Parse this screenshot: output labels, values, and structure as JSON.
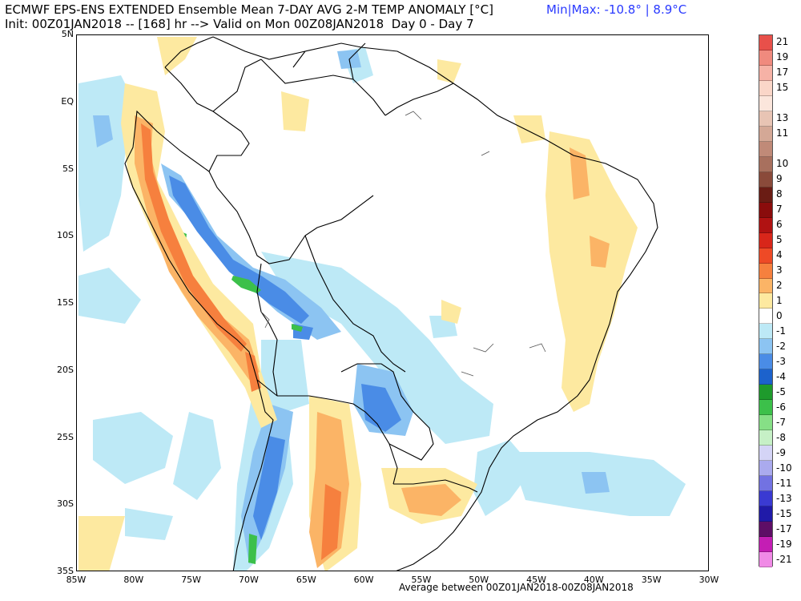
{
  "header": {
    "title_line1": "ECMWF EPS-ENS EXTENDED Ensemble Mean 7-DAY AVG 2-M TEMP ANOMALY [°C]",
    "title_line2": "Init: 00Z01JAN2018 -- [168] hr --> Valid on Mon 00Z08JAN2018  Day 0 - Day 7",
    "minmax": "Min|Max: -10.8° | 8.9°C"
  },
  "footer": {
    "text": "Average between 00Z01JAN2018-00Z08JAN2018"
  },
  "axes": {
    "lon_range": [
      -85,
      -30
    ],
    "lat_range": [
      -35,
      5
    ],
    "lat_ticks": [
      {
        "lat": 5,
        "label": "5N"
      },
      {
        "lat": 0,
        "label": "EQ"
      },
      {
        "lat": -5,
        "label": "5S"
      },
      {
        "lat": -10,
        "label": "10S"
      },
      {
        "lat": -15,
        "label": "15S"
      },
      {
        "lat": -20,
        "label": "20S"
      },
      {
        "lat": -25,
        "label": "25S"
      },
      {
        "lat": -30,
        "label": "30S"
      },
      {
        "lat": -35,
        "label": "35S"
      }
    ],
    "lon_ticks": [
      {
        "lon": -85,
        "label": "85W"
      },
      {
        "lon": -80,
        "label": "80W"
      },
      {
        "lon": -75,
        "label": "75W"
      },
      {
        "lon": -70,
        "label": "70W"
      },
      {
        "lon": -65,
        "label": "65W"
      },
      {
        "lon": -60,
        "label": "60W"
      },
      {
        "lon": -55,
        "label": "55W"
      },
      {
        "lon": -50,
        "label": "50W"
      },
      {
        "lon": -45,
        "label": "45W"
      },
      {
        "lon": -40,
        "label": "40W"
      },
      {
        "lon": -35,
        "label": "35W"
      },
      {
        "lon": -30,
        "label": "30W"
      }
    ]
  },
  "colorbar": [
    {
      "label": "21",
      "color": "#e8504a"
    },
    {
      "label": "19",
      "color": "#f08a7e"
    },
    {
      "label": "17",
      "color": "#f6b2a6"
    },
    {
      "label": "15",
      "color": "#fad6c8"
    },
    {
      "label": "",
      "color": "#fbe6dc"
    },
    {
      "label": "13",
      "color": "#e8c4b4"
    },
    {
      "label": "11",
      "color": "#d4a896"
    },
    {
      "label": "",
      "color": "#c08a78"
    },
    {
      "label": "10",
      "color": "#a8705e"
    },
    {
      "label": "9",
      "color": "#8a4a3a"
    },
    {
      "label": "8",
      "color": "#6a1c14"
    },
    {
      "label": "7",
      "color": "#8a0c0c"
    },
    {
      "label": "6",
      "color": "#b01212"
    },
    {
      "label": "5",
      "color": "#d8261a"
    },
    {
      "label": "4",
      "color": "#ee4a26"
    },
    {
      "label": "3",
      "color": "#f6803e"
    },
    {
      "label": "2",
      "color": "#fbb466"
    },
    {
      "label": "1",
      "color": "#fde9a0"
    },
    {
      "label": "0",
      "color": "#ffffff"
    },
    {
      "label": "-1",
      "color": "#bde9f6"
    },
    {
      "label": "-2",
      "color": "#8cc4f2"
    },
    {
      "label": "-3",
      "color": "#4a8ce6"
    },
    {
      "label": "-4",
      "color": "#1c62cc"
    },
    {
      "label": "-5",
      "color": "#1e9a2c"
    },
    {
      "label": "-6",
      "color": "#3cc04a"
    },
    {
      "label": "-7",
      "color": "#86df86"
    },
    {
      "label": "-8",
      "color": "#c6f0c6"
    },
    {
      "label": "-9",
      "color": "#d4d4f6"
    },
    {
      "label": "-10",
      "color": "#aaaaee"
    },
    {
      "label": "-11",
      "color": "#7272e2"
    },
    {
      "label": "-13",
      "color": "#3a3ad2"
    },
    {
      "label": "-15",
      "color": "#201aa8"
    },
    {
      "label": "-17",
      "color": "#5e0e66"
    },
    {
      "label": "-19",
      "color": "#c41eb4"
    },
    {
      "label": "-21",
      "color": "#f08ae6"
    }
  ]
}
